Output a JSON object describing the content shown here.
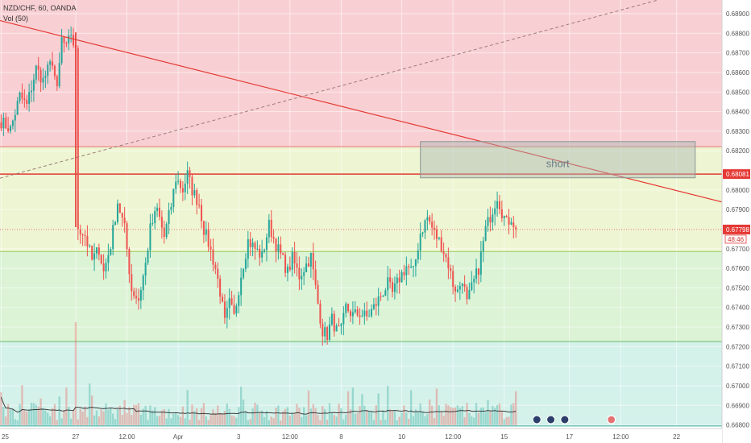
{
  "legend": {
    "symbol": "NZD/CHF, 60, OANDA",
    "volume": "Vol (50)"
  },
  "colors": {
    "up": "#26a69a",
    "down": "#ef5350",
    "zone_red": "#f8d0d3",
    "zone_yellow": "#eef5d2",
    "zone_green": "#dcf3d6",
    "zone_teal": "#d4f1ea",
    "trend": "#e53935",
    "price_tag": "#e53935"
  },
  "chart_data": {
    "type": "candlestick",
    "symbol": "NZD/CHF",
    "timeframe": "60",
    "source": "OANDA",
    "y_axis": {
      "range": [
        0.6679,
        0.6897
      ],
      "tick_labels": [
        "0.68900",
        "0.68800",
        "0.68700",
        "0.68600",
        "0.68500",
        "0.68400",
        "0.68300",
        "0.68200",
        "0.68081",
        "0.68000",
        "0.67900",
        "0.67798",
        "0.67700",
        "0.67600",
        "0.67500",
        "0.67400",
        "0.67300",
        "0.67200",
        "0.67100",
        "0.67000",
        "0.66900",
        "0.66800"
      ],
      "tick_values": [
        0.689,
        0.688,
        0.687,
        0.686,
        0.685,
        0.684,
        0.683,
        0.682,
        0.68081,
        0.68,
        0.679,
        0.67798,
        0.677,
        0.676,
        0.675,
        0.674,
        0.673,
        0.672,
        0.671,
        0.67,
        0.669,
        0.668
      ]
    },
    "x_axis": {
      "tick_labels": [
        "25",
        "27",
        "12:00",
        "Apr",
        "3",
        "12:00",
        "8",
        "10",
        "12:00",
        "15",
        "17",
        "12:00",
        "22"
      ],
      "tick_bars": [
        0,
        32,
        54,
        76,
        102,
        124,
        146,
        172,
        194,
        216,
        244,
        266,
        290
      ]
    },
    "last_price": "0.67798",
    "countdown": "48:46",
    "level_tag": "0.68081",
    "annotation": "short",
    "horizontal_levels": [
      0.68221,
      0.68081,
      0.67685,
      0.67226,
      0.66795
    ],
    "zones": [
      {
        "from": 0.68221,
        "to": 0.6897,
        "color": "zone_red"
      },
      {
        "from": 0.67685,
        "to": 0.68221,
        "color": "zone_yellow"
      },
      {
        "from": 0.67226,
        "to": 0.67685,
        "color": "zone_green"
      },
      {
        "from": 0.6679,
        "to": 0.67226,
        "color": "zone_teal"
      }
    ],
    "short_box": {
      "bar_from": 180,
      "bar_to": 298,
      "price_top": 0.68247,
      "price_bottom": 0.68062
    },
    "trendline": {
      "bar_from": 0,
      "price_from": 0.68865,
      "bar_to": 310,
      "price_to": 0.67937
    },
    "dashed_line": {
      "bar_from": 0,
      "price_from": 0.6806,
      "bar_to": 282,
      "price_to": 0.6897
    },
    "vertical_drop": {
      "bar": 32,
      "price_from": 0.68805,
      "price_to": 0.6781
    },
    "waypoints": [
      [
        0,
        0.6835
      ],
      [
        4,
        0.6831
      ],
      [
        8,
        0.6848
      ],
      [
        11,
        0.6843
      ],
      [
        15,
        0.6862
      ],
      [
        18,
        0.6856
      ],
      [
        22,
        0.6866
      ],
      [
        24,
        0.685
      ],
      [
        26,
        0.6877
      ],
      [
        28,
        0.6872
      ],
      [
        30,
        0.688
      ],
      [
        32,
        0.687
      ],
      [
        33,
        0.6781
      ],
      [
        36,
        0.6777
      ],
      [
        39,
        0.6764
      ],
      [
        42,
        0.677
      ],
      [
        44,
        0.6758
      ],
      [
        47,
        0.6772
      ],
      [
        50,
        0.6794
      ],
      [
        53,
        0.678
      ],
      [
        56,
        0.6749
      ],
      [
        59,
        0.6744
      ],
      [
        62,
        0.6762
      ],
      [
        64,
        0.678
      ],
      [
        67,
        0.679
      ],
      [
        70,
        0.6776
      ],
      [
        73,
        0.6792
      ],
      [
        75,
        0.6806
      ],
      [
        78,
        0.68
      ],
      [
        80,
        0.6808
      ],
      [
        82,
        0.68
      ],
      [
        85,
        0.6793
      ],
      [
        87,
        0.678
      ],
      [
        89,
        0.6773
      ],
      [
        92,
        0.676
      ],
      [
        94,
        0.6748
      ],
      [
        96,
        0.6732
      ],
      [
        98,
        0.6742
      ],
      [
        100,
        0.6735
      ],
      [
        103,
        0.6757
      ],
      [
        106,
        0.6774
      ],
      [
        109,
        0.677
      ],
      [
        112,
        0.6766
      ],
      [
        115,
        0.6782
      ],
      [
        118,
        0.6772
      ],
      [
        121,
        0.6764
      ],
      [
        123,
        0.6758
      ],
      [
        125,
        0.6765
      ],
      [
        128,
        0.6756
      ],
      [
        131,
        0.6762
      ],
      [
        133,
        0.6766
      ],
      [
        136,
        0.6742
      ],
      [
        138,
        0.6728
      ],
      [
        140,
        0.6726
      ],
      [
        142,
        0.6734
      ],
      [
        144,
        0.6728
      ],
      [
        146,
        0.6728
      ],
      [
        148,
        0.674
      ],
      [
        151,
        0.6736
      ],
      [
        154,
        0.6737
      ],
      [
        157,
        0.6735
      ],
      [
        160,
        0.674
      ],
      [
        163,
        0.6746
      ],
      [
        166,
        0.6752
      ],
      [
        168,
        0.6747
      ],
      [
        171,
        0.6755
      ],
      [
        174,
        0.6761
      ],
      [
        177,
        0.6758
      ],
      [
        180,
        0.6778
      ],
      [
        183,
        0.6786
      ],
      [
        186,
        0.6778
      ],
      [
        189,
        0.6772
      ],
      [
        192,
        0.6762
      ],
      [
        194,
        0.6752
      ],
      [
        196,
        0.6748
      ],
      [
        198,
        0.6755
      ],
      [
        200,
        0.6742
      ],
      [
        202,
        0.675
      ],
      [
        205,
        0.676
      ],
      [
        208,
        0.678
      ],
      [
        211,
        0.679
      ],
      [
        213,
        0.6797
      ],
      [
        215,
        0.6789
      ],
      [
        217,
        0.6783
      ],
      [
        219,
        0.6786
      ],
      [
        221,
        0.678
      ]
    ],
    "last_bar": 221,
    "total_bars": 310,
    "volume_baseline_bar_to": 221
  }
}
